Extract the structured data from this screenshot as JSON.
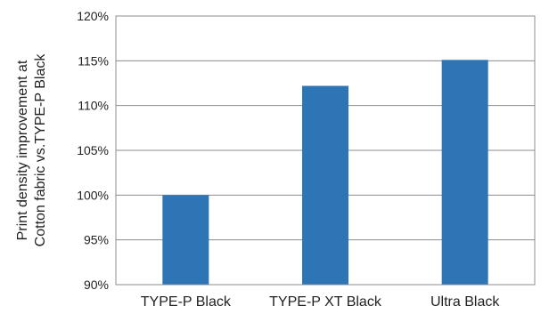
{
  "chart_data": {
    "type": "bar",
    "title": "",
    "xlabel": "",
    "ylabel": [
      "Print density improvement at",
      "Cotton fabric vs.TYPE-P Black"
    ],
    "categories": [
      "TYPE-P Black",
      "TYPE-P XT Black",
      "Ultra Black"
    ],
    "values": [
      100,
      112.2,
      115.1
    ],
    "ylim": [
      90,
      120
    ],
    "yticks": [
      90,
      95,
      100,
      105,
      110,
      115,
      120
    ],
    "ytick_labels": [
      "90%",
      "95%",
      "100%",
      "105%",
      "110%",
      "115%",
      "120%"
    ],
    "grid": true,
    "legend": "none",
    "bar_color": "#2e75b6"
  }
}
